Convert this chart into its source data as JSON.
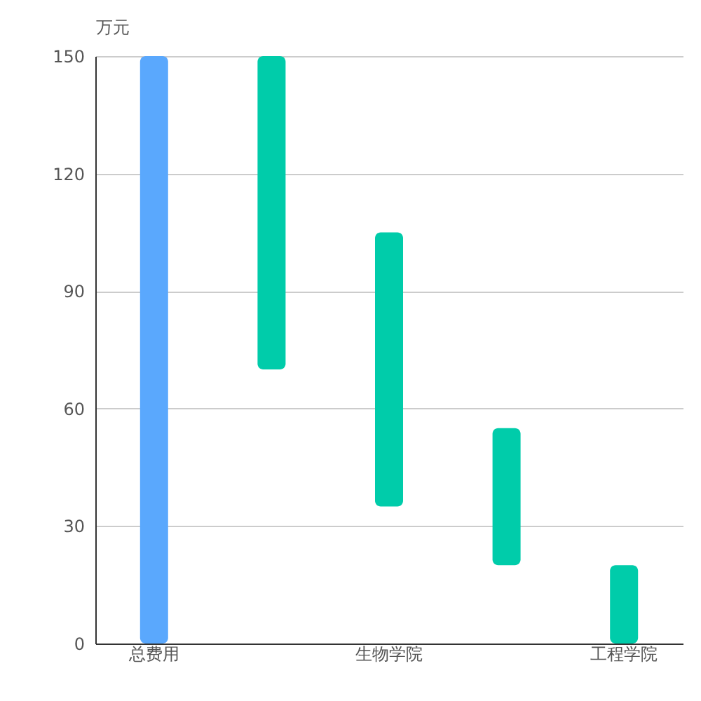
{
  "chart_data": {
    "type": "bar",
    "ylabel": "万元",
    "categories": [
      "总费用",
      null,
      "生物学院",
      null,
      "工程学院"
    ],
    "values": [
      150,
      80,
      70,
      35,
      20
    ],
    "base": [
      0,
      70,
      35,
      20,
      0
    ],
    "colors": [
      "#5aa8fd",
      "#00ccaa",
      "#00ccaa",
      "#00ccaa",
      "#00ccaa"
    ],
    "ylim": [
      0,
      150
    ],
    "yticks": [
      0,
      30,
      60,
      90,
      120,
      150
    ],
    "grid": "y"
  }
}
